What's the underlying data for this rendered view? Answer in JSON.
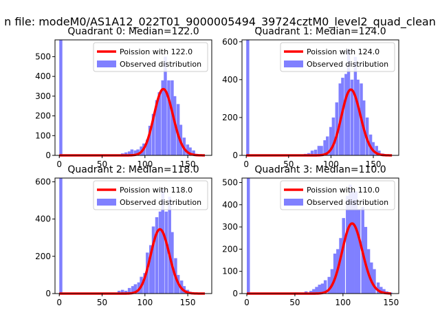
{
  "figure": {
    "suptitle": "n file: modeM0/AS1A12_022T01_9000005494_39724cztM0_level2_quad_clean"
  },
  "colors": {
    "hist": "#8080ff",
    "poisson": "#ff0000",
    "poisson_peak": "#ff8080",
    "axis": "#000000"
  },
  "chart_data": [
    {
      "type": "bar",
      "title": "Quadrant 0: Median=122.0",
      "legend": [
        "Poission with 122.0",
        "Observed distribution"
      ],
      "legend_position": "top-right",
      "xlim": [
        -5,
        178
      ],
      "ylim": [
        0,
        585
      ],
      "xticks": [
        0,
        50,
        100,
        150
      ],
      "yticks": [
        0,
        100,
        200,
        300,
        400,
        500
      ],
      "bin_width": 3.6,
      "poisson_mean": 122.0,
      "poisson_count": 9300,
      "observed_bins": [
        [
          0,
          585
        ],
        [
          50,
          5
        ],
        [
          65,
          5
        ],
        [
          72,
          10
        ],
        [
          76,
          15
        ],
        [
          80,
          20
        ],
        [
          83,
          30
        ],
        [
          87,
          25
        ],
        [
          90,
          30
        ],
        [
          94,
          45
        ],
        [
          97,
          60
        ],
        [
          101,
          80
        ],
        [
          104,
          150
        ],
        [
          108,
          210
        ],
        [
          112,
          280
        ],
        [
          115,
          320
        ],
        [
          119,
          380
        ],
        [
          122,
          500
        ],
        [
          126,
          380
        ],
        [
          130,
          380
        ],
        [
          133,
          300
        ],
        [
          137,
          260
        ],
        [
          140,
          155
        ],
        [
          144,
          90
        ],
        [
          148,
          55
        ],
        [
          151,
          40
        ],
        [
          155,
          25
        ],
        [
          158,
          8
        ],
        [
          162,
          3
        ],
        [
          166,
          2
        ]
      ]
    },
    {
      "type": "bar",
      "title": "Quadrant 1: Median=124.0",
      "legend": [
        "Poission with 124.0",
        "Observed distribution"
      ],
      "legend_position": "top-right",
      "xlim": [
        -5,
        180
      ],
      "ylim": [
        0,
        610
      ],
      "xticks": [
        0,
        50,
        100,
        150
      ],
      "yticks": [
        0,
        200,
        400,
        600
      ],
      "bin_width": 3.6,
      "poisson_mean": 124.0,
      "poisson_count": 9700,
      "observed_bins": [
        [
          0,
          610
        ],
        [
          55,
          5
        ],
        [
          68,
          8
        ],
        [
          72,
          12
        ],
        [
          76,
          25
        ],
        [
          80,
          30
        ],
        [
          84,
          50
        ],
        [
          87,
          50
        ],
        [
          91,
          80
        ],
        [
          94,
          100
        ],
        [
          98,
          150
        ],
        [
          101,
          200
        ],
        [
          105,
          280
        ],
        [
          109,
          380
        ],
        [
          112,
          410
        ],
        [
          116,
          430
        ],
        [
          119,
          560
        ],
        [
          123,
          400
        ],
        [
          127,
          520
        ],
        [
          130,
          400
        ],
        [
          134,
          380
        ],
        [
          137,
          290
        ],
        [
          141,
          200
        ],
        [
          145,
          110
        ],
        [
          148,
          70
        ],
        [
          152,
          50
        ],
        [
          155,
          25
        ],
        [
          159,
          10
        ],
        [
          163,
          5
        ],
        [
          166,
          2
        ]
      ]
    },
    {
      "type": "bar",
      "title": "Quadrant 2: Median=118.0",
      "legend": [
        "Poission with 118.0",
        "Observed distribution"
      ],
      "legend_position": "top-right",
      "xlim": [
        -5,
        178
      ],
      "ylim": [
        0,
        620
      ],
      "xticks": [
        0,
        50,
        100,
        150
      ],
      "yticks": [
        0,
        200,
        400,
        600
      ],
      "bin_width": 3.6,
      "poisson_mean": 118.0,
      "poisson_count": 9400,
      "observed_bins": [
        [
          0,
          620
        ],
        [
          56,
          5
        ],
        [
          68,
          15
        ],
        [
          72,
          20
        ],
        [
          76,
          15
        ],
        [
          80,
          30
        ],
        [
          84,
          40
        ],
        [
          87,
          50
        ],
        [
          91,
          60
        ],
        [
          94,
          90
        ],
        [
          98,
          110
        ],
        [
          101,
          220
        ],
        [
          105,
          260
        ],
        [
          108,
          360
        ],
        [
          112,
          410
        ],
        [
          116,
          440
        ],
        [
          119,
          560
        ],
        [
          123,
          440
        ],
        [
          127,
          520
        ],
        [
          130,
          330
        ],
        [
          134,
          190
        ],
        [
          137,
          100
        ],
        [
          141,
          70
        ],
        [
          144,
          40
        ],
        [
          148,
          20
        ],
        [
          151,
          10
        ],
        [
          155,
          5
        ],
        [
          159,
          3
        ]
      ]
    },
    {
      "type": "bar",
      "title": "Quadrant 3: Median=110.0",
      "legend": [
        "Poission with 110.0",
        "Observed distribution"
      ],
      "legend_position": "top-right",
      "xlim": [
        -5,
        158
      ],
      "ylim": [
        0,
        520
      ],
      "xticks": [
        0,
        50,
        100,
        150
      ],
      "yticks": [
        0,
        100,
        200,
        300,
        400,
        500
      ],
      "bin_width": 3.2,
      "poisson_mean": 110.0,
      "poisson_count": 8300,
      "observed_bins": [
        [
          0,
          520
        ],
        [
          50,
          5
        ],
        [
          60,
          10
        ],
        [
          65,
          12
        ],
        [
          68,
          20
        ],
        [
          71,
          30
        ],
        [
          74,
          40
        ],
        [
          77,
          45
        ],
        [
          80,
          60
        ],
        [
          84,
          75
        ],
        [
          87,
          110
        ],
        [
          90,
          180
        ],
        [
          93,
          200
        ],
        [
          96,
          250
        ],
        [
          99,
          340
        ],
        [
          103,
          440
        ],
        [
          106,
          490
        ],
        [
          109,
          460
        ],
        [
          112,
          460
        ],
        [
          115,
          380
        ],
        [
          119,
          390
        ],
        [
          122,
          300
        ],
        [
          125,
          200
        ],
        [
          128,
          140
        ],
        [
          131,
          110
        ],
        [
          135,
          50
        ],
        [
          138,
          30
        ],
        [
          141,
          20
        ],
        [
          144,
          10
        ],
        [
          148,
          5
        ]
      ]
    }
  ]
}
